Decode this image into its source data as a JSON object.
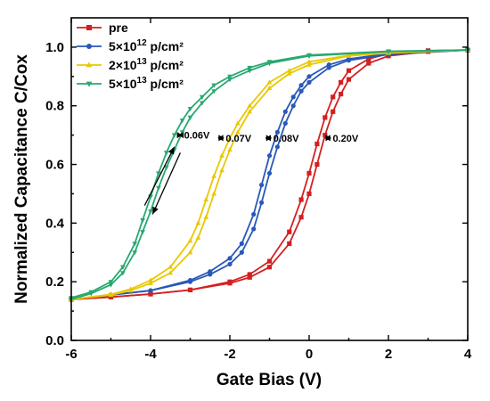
{
  "chart_data": {
    "type": "line",
    "xlabel": "Gate Bias (V)",
    "ylabel": "Normalized Capacitance C/Cox",
    "xlim": [
      -6,
      4
    ],
    "ylim": [
      0.0,
      1.1
    ],
    "x_ticks": [
      "-6",
      "-4",
      "-2",
      "0",
      "2",
      "4"
    ],
    "x_tick_values": [
      -6,
      -4,
      -2,
      0,
      2,
      4
    ],
    "y_ticks": [
      "0.0",
      "0.2",
      "0.4",
      "0.6",
      "0.8",
      "1.0"
    ],
    "y_tick_values": [
      0.0,
      0.2,
      0.4,
      0.6,
      0.8,
      1.0
    ],
    "grid": false,
    "legend_position": "top-left",
    "series": [
      {
        "name": "pre",
        "name_base": "pre",
        "name_exp": "",
        "name_unit": "",
        "color": "#d42020",
        "marker": "square",
        "x": [
          -6,
          -5,
          -4,
          -3,
          -2,
          -1.5,
          -1,
          -0.5,
          -0.2,
          0,
          0.2,
          0.4,
          0.6,
          0.8,
          1,
          1.5,
          2,
          3,
          4
        ],
        "up": [
          0.14,
          0.148,
          0.158,
          0.172,
          0.195,
          0.215,
          0.25,
          0.33,
          0.42,
          0.5,
          0.6,
          0.7,
          0.78,
          0.84,
          0.89,
          0.945,
          0.97,
          0.985,
          0.99
        ],
        "down": [
          0.14,
          0.148,
          0.158,
          0.172,
          0.2,
          0.225,
          0.27,
          0.37,
          0.48,
          0.57,
          0.67,
          0.76,
          0.83,
          0.88,
          0.92,
          0.96,
          0.978,
          0.988,
          0.99
        ]
      },
      {
        "name": "5×10¹² p/cm²",
        "name_base": "5×10",
        "name_exp": "12",
        "name_unit": " p/cm²",
        "color": "#2858b8",
        "marker": "circle",
        "x": [
          -6,
          -5,
          -4,
          -3,
          -2.5,
          -2,
          -1.7,
          -1.4,
          -1.2,
          -1,
          -0.8,
          -0.6,
          -0.4,
          -0.2,
          0,
          0.5,
          1,
          2,
          4
        ],
        "up": [
          0.14,
          0.155,
          0.17,
          0.2,
          0.225,
          0.26,
          0.3,
          0.38,
          0.47,
          0.57,
          0.66,
          0.74,
          0.8,
          0.85,
          0.88,
          0.93,
          0.955,
          0.975,
          0.99
        ],
        "down": [
          0.14,
          0.155,
          0.17,
          0.205,
          0.235,
          0.28,
          0.33,
          0.43,
          0.53,
          0.63,
          0.71,
          0.78,
          0.83,
          0.87,
          0.9,
          0.94,
          0.96,
          0.978,
          0.99
        ]
      },
      {
        "name": "2×10¹³ p/cm²",
        "name_base": "2×10",
        "name_exp": "13",
        "name_unit": " p/cm²",
        "color": "#e8c800",
        "marker": "triangle-up",
        "x": [
          -6,
          -5,
          -4.5,
          -4,
          -3.5,
          -3,
          -2.8,
          -2.6,
          -2.4,
          -2.2,
          -2,
          -1.8,
          -1.5,
          -1,
          -0.5,
          0,
          1,
          2,
          4
        ],
        "up": [
          0.14,
          0.155,
          0.17,
          0.195,
          0.23,
          0.3,
          0.35,
          0.42,
          0.5,
          0.58,
          0.65,
          0.71,
          0.78,
          0.86,
          0.91,
          0.94,
          0.97,
          0.98,
          0.99
        ],
        "down": [
          0.14,
          0.157,
          0.175,
          0.205,
          0.25,
          0.34,
          0.4,
          0.48,
          0.56,
          0.63,
          0.69,
          0.74,
          0.8,
          0.88,
          0.92,
          0.95,
          0.972,
          0.982,
          0.99
        ]
      },
      {
        "name": "5×10¹³ p/cm²",
        "name_base": "5×10",
        "name_exp": "13",
        "name_unit": " p/cm²",
        "color": "#28a870",
        "marker": "triangle-down",
        "x": [
          -6,
          -5.5,
          -5,
          -4.7,
          -4.4,
          -4.2,
          -4,
          -3.8,
          -3.6,
          -3.4,
          -3.2,
          -3,
          -2.7,
          -2.4,
          -2,
          -1.5,
          -1,
          0,
          2,
          4
        ],
        "up": [
          0.14,
          0.16,
          0.19,
          0.23,
          0.3,
          0.37,
          0.44,
          0.52,
          0.59,
          0.65,
          0.71,
          0.76,
          0.81,
          0.85,
          0.89,
          0.92,
          0.945,
          0.97,
          0.985,
          0.99
        ],
        "down": [
          0.145,
          0.165,
          0.2,
          0.25,
          0.33,
          0.41,
          0.49,
          0.57,
          0.64,
          0.7,
          0.75,
          0.79,
          0.83,
          0.87,
          0.9,
          0.93,
          0.95,
          0.973,
          0.986,
          0.99
        ]
      }
    ],
    "annotations": [
      {
        "text": "0.06V",
        "series": 3,
        "arrow_x": [
          -3.3,
          -3.2
        ],
        "y": 0.7
      },
      {
        "text": "0.07V",
        "series": 2,
        "arrow_x": [
          -2.3,
          -2.15
        ],
        "y": 0.69
      },
      {
        "text": "0.08V",
        "series": 1,
        "arrow_x": [
          -1.1,
          -0.95
        ],
        "y": 0.69
      },
      {
        "text": "0.20V",
        "series": 0,
        "arrow_x": [
          0.4,
          0.55
        ],
        "y": 0.69
      }
    ],
    "sweep_arrows": [
      {
        "direction": "up",
        "from": [
          -4.15,
          0.46
        ],
        "to": [
          -3.4,
          0.66
        ]
      },
      {
        "direction": "down",
        "from": [
          -3.25,
          0.64
        ],
        "to": [
          -3.95,
          0.43
        ]
      }
    ]
  }
}
